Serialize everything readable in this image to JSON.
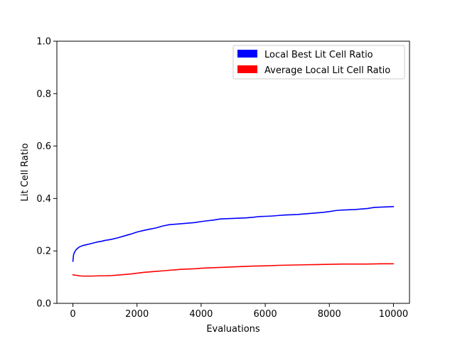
{
  "chart_data": {
    "type": "line",
    "title": "",
    "xlabel": "Evaluations",
    "ylabel": "Lit Cell Ratio",
    "xlim": [
      -500,
      10500
    ],
    "ylim": [
      0.0,
      1.0
    ],
    "x_ticks": [
      0,
      2000,
      4000,
      6000,
      8000,
      10000
    ],
    "x_tick_labels": [
      "0",
      "2000",
      "4000",
      "6000",
      "8000",
      "10000"
    ],
    "y_ticks": [
      0.0,
      0.2,
      0.4,
      0.6,
      0.8,
      1.0
    ],
    "y_tick_labels": [
      "0.0",
      "0.2",
      "0.4",
      "0.6",
      "0.8",
      "1.0"
    ],
    "grid": false,
    "legend_position": "top-right",
    "series": [
      {
        "name": "Local Best Lit Cell Ratio",
        "color": "#0000ff",
        "points": [
          [
            0,
            0.16
          ],
          [
            20,
            0.185
          ],
          [
            50,
            0.195
          ],
          [
            100,
            0.205
          ],
          [
            150,
            0.21
          ],
          [
            200,
            0.215
          ],
          [
            300,
            0.22
          ],
          [
            400,
            0.223
          ],
          [
            500,
            0.226
          ],
          [
            600,
            0.229
          ],
          [
            700,
            0.232
          ],
          [
            800,
            0.235
          ],
          [
            900,
            0.237
          ],
          [
            1000,
            0.24
          ],
          [
            1200,
            0.244
          ],
          [
            1400,
            0.25
          ],
          [
            1600,
            0.257
          ],
          [
            1800,
            0.264
          ],
          [
            2000,
            0.272
          ],
          [
            2200,
            0.278
          ],
          [
            2400,
            0.283
          ],
          [
            2600,
            0.288
          ],
          [
            2800,
            0.295
          ],
          [
            3000,
            0.3
          ],
          [
            3200,
            0.302
          ],
          [
            3400,
            0.304
          ],
          [
            3600,
            0.306
          ],
          [
            3800,
            0.308
          ],
          [
            4000,
            0.312
          ],
          [
            4200,
            0.315
          ],
          [
            4400,
            0.318
          ],
          [
            4600,
            0.322
          ],
          [
            4800,
            0.323
          ],
          [
            5000,
            0.324
          ],
          [
            5200,
            0.325
          ],
          [
            5400,
            0.326
          ],
          [
            5600,
            0.328
          ],
          [
            5800,
            0.331
          ],
          [
            6000,
            0.332
          ],
          [
            6200,
            0.333
          ],
          [
            6400,
            0.335
          ],
          [
            6600,
            0.337
          ],
          [
            6800,
            0.338
          ],
          [
            7000,
            0.339
          ],
          [
            7200,
            0.341
          ],
          [
            7400,
            0.343
          ],
          [
            7600,
            0.345
          ],
          [
            7800,
            0.347
          ],
          [
            8000,
            0.35
          ],
          [
            8200,
            0.354
          ],
          [
            8400,
            0.356
          ],
          [
            8600,
            0.357
          ],
          [
            8800,
            0.358
          ],
          [
            9000,
            0.36
          ],
          [
            9200,
            0.362
          ],
          [
            9400,
            0.366
          ],
          [
            9600,
            0.367
          ],
          [
            9800,
            0.368
          ],
          [
            10000,
            0.369
          ]
        ]
      },
      {
        "name": "Average Local Lit Cell Ratio",
        "color": "#ff0000",
        "points": [
          [
            0,
            0.109
          ],
          [
            100,
            0.107
          ],
          [
            200,
            0.105
          ],
          [
            300,
            0.104
          ],
          [
            400,
            0.104
          ],
          [
            500,
            0.104
          ],
          [
            600,
            0.104
          ],
          [
            800,
            0.105
          ],
          [
            1000,
            0.105
          ],
          [
            1200,
            0.106
          ],
          [
            1400,
            0.108
          ],
          [
            1600,
            0.11
          ],
          [
            1800,
            0.112
          ],
          [
            2000,
            0.115
          ],
          [
            2200,
            0.118
          ],
          [
            2400,
            0.12
          ],
          [
            2600,
            0.122
          ],
          [
            2800,
            0.124
          ],
          [
            3000,
            0.126
          ],
          [
            3200,
            0.128
          ],
          [
            3400,
            0.13
          ],
          [
            3600,
            0.131
          ],
          [
            3800,
            0.132
          ],
          [
            4000,
            0.134
          ],
          [
            4400,
            0.136
          ],
          [
            4800,
            0.138
          ],
          [
            5200,
            0.14
          ],
          [
            5600,
            0.142
          ],
          [
            6000,
            0.143
          ],
          [
            6400,
            0.145
          ],
          [
            6800,
            0.146
          ],
          [
            7200,
            0.147
          ],
          [
            7600,
            0.148
          ],
          [
            8000,
            0.149
          ],
          [
            8400,
            0.15
          ],
          [
            8800,
            0.15
          ],
          [
            9200,
            0.15
          ],
          [
            9600,
            0.151
          ],
          [
            10000,
            0.151
          ]
        ]
      }
    ]
  }
}
